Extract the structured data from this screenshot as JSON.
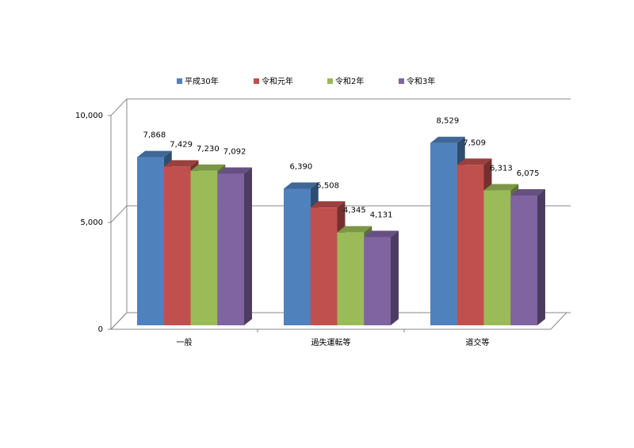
{
  "chart_data": {
    "type": "bar3d",
    "categories": [
      "一般",
      "過失運転等",
      "道交等"
    ],
    "series": [
      {
        "name": "平成30年",
        "color": "#4f81bd",
        "values": [
          7868,
          6390,
          8529
        ],
        "value_labels": [
          "7,868",
          "6,390",
          "8,529"
        ]
      },
      {
        "name": "令和元年",
        "color": "#c0504d",
        "values": [
          7429,
          5508,
          7509
        ],
        "value_labels": [
          "7,429",
          "5,508",
          "7,509"
        ]
      },
      {
        "name": "令和2年",
        "color": "#9bbb59",
        "values": [
          7230,
          4345,
          6313
        ],
        "value_labels": [
          "7,230",
          "4,345",
          "6,313"
        ]
      },
      {
        "name": "令和3年",
        "color": "#8064a2",
        "values": [
          7092,
          4131,
          6075
        ],
        "value_labels": [
          "7,092",
          "4,131",
          "6,075"
        ]
      }
    ],
    "ylim": [
      0,
      10000
    ],
    "yticks": [
      0,
      {
        "value": 5000,
        "label": "5,000"
      },
      {
        "value": 10000,
        "label": "10,000"
      }
    ],
    "grid": true,
    "legend": "top"
  }
}
